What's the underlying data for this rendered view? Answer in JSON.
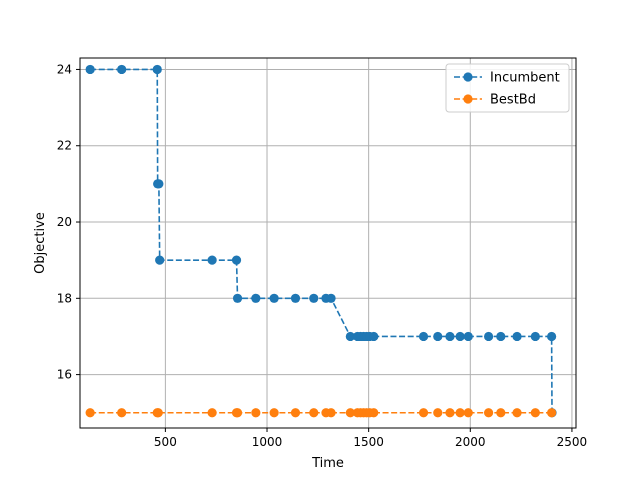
{
  "chart_data": {
    "type": "line",
    "title": "",
    "xlabel": "Time",
    "ylabel": "Objective",
    "xlim": [
      80,
      2520
    ],
    "ylim": [
      14.6,
      24.3
    ],
    "xticks": [
      500,
      1000,
      1500,
      2000,
      2500
    ],
    "yticks": [
      16,
      18,
      20,
      22,
      24
    ],
    "grid": true,
    "legend_position": "top-right",
    "series": [
      {
        "name": "Incumbent",
        "color": "#1f77b4",
        "linestyle": "dashed",
        "marker": "circle",
        "x": [
          130,
          285,
          460,
          462,
          468,
          472,
          730,
          850,
          855,
          945,
          1035,
          1140,
          1230,
          1290,
          1315,
          1410,
          1445,
          1460,
          1475,
          1490,
          1505,
          1525,
          1770,
          1840,
          1900,
          1950,
          1990,
          2090,
          2150,
          2230,
          2320,
          2400,
          2402
        ],
        "y": [
          24,
          24,
          24,
          21,
          21,
          19,
          19,
          19,
          18,
          18,
          18,
          18,
          18,
          18,
          18,
          17,
          17,
          17,
          17,
          17,
          17,
          17,
          17,
          17,
          17,
          17,
          17,
          17,
          17,
          17,
          17,
          17,
          15
        ]
      },
      {
        "name": "BestBd",
        "color": "#ff7f0e",
        "linestyle": "dashed",
        "marker": "circle",
        "x": [
          130,
          285,
          460,
          465,
          730,
          850,
          855,
          945,
          1035,
          1140,
          1230,
          1290,
          1315,
          1410,
          1445,
          1460,
          1475,
          1490,
          1505,
          1525,
          1770,
          1840,
          1900,
          1950,
          1990,
          2090,
          2150,
          2230,
          2320,
          2400
        ],
        "y": [
          15,
          15,
          15,
          15,
          15,
          15,
          15,
          15,
          15,
          15,
          15,
          15,
          15,
          15,
          15,
          15,
          15,
          15,
          15,
          15,
          15,
          15,
          15,
          15,
          15,
          15,
          15,
          15,
          15,
          15
        ]
      }
    ]
  }
}
